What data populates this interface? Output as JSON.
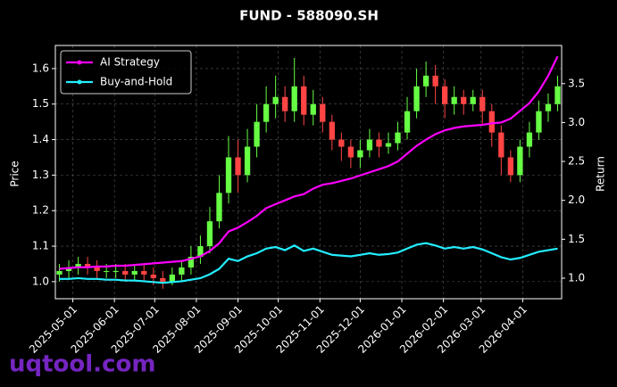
{
  "chart_data": {
    "type": "candlestick",
    "title": "FUND - 588090.SH",
    "ylabel": "Price",
    "y2label": "Return",
    "watermark": "uqtool.com",
    "up_color": "#66ff44",
    "down_color": "#ff4444",
    "grid": true,
    "legend": "upper left",
    "xlim": [
      "2025-04-18",
      "2026-04-30"
    ],
    "xticks": [
      "2025-05-01",
      "2025-06-01",
      "2025-07-01",
      "2025-08-01",
      "2025-09-01",
      "2025-10-01",
      "2025-11-01",
      "2025-12-01",
      "2026-01-01",
      "2026-02-01",
      "2026-03-01",
      "2026-04-01"
    ],
    "ylim": [
      0.952,
      1.665
    ],
    "yticks": [
      {
        "value": 1.0,
        "label": "1.0"
      },
      {
        "value": 1.1,
        "label": "1.1"
      },
      {
        "value": 1.2,
        "label": "1.2"
      },
      {
        "value": 1.3,
        "label": "1.3"
      },
      {
        "value": 1.4,
        "label": "1.4"
      },
      {
        "value": 1.5,
        "label": "1.5"
      },
      {
        "value": 1.6,
        "label": "1.6"
      }
    ],
    "y2lim": [
      0.736,
      3.99
    ],
    "y2ticks": [
      {
        "value": 1.0,
        "label": "1.0"
      },
      {
        "value": 1.5,
        "label": "1.5"
      },
      {
        "value": 2.0,
        "label": "2.0"
      },
      {
        "value": 2.5,
        "label": "2.5"
      },
      {
        "value": 3.0,
        "label": "3.0"
      },
      {
        "value": 3.5,
        "label": "3.5"
      }
    ],
    "x": [
      "2025-04-21",
      "2025-04-28",
      "2025-05-05",
      "2025-05-12",
      "2025-05-19",
      "2025-05-26",
      "2025-06-02",
      "2025-06-09",
      "2025-06-16",
      "2025-06-23",
      "2025-06-30",
      "2025-07-07",
      "2025-07-14",
      "2025-07-21",
      "2025-07-28",
      "2025-08-04",
      "2025-08-11",
      "2025-08-18",
      "2025-08-25",
      "2025-09-01",
      "2025-09-08",
      "2025-09-15",
      "2025-09-22",
      "2025-09-29",
      "2025-10-06",
      "2025-10-13",
      "2025-10-20",
      "2025-10-27",
      "2025-11-03",
      "2025-11-10",
      "2025-11-17",
      "2025-11-24",
      "2025-12-01",
      "2025-12-08",
      "2025-12-15",
      "2025-12-22",
      "2025-12-29",
      "2026-01-05",
      "2026-01-12",
      "2026-01-19",
      "2026-01-26",
      "2026-02-02",
      "2026-02-09",
      "2026-02-16",
      "2026-02-23",
      "2026-03-02",
      "2026-03-09",
      "2026-03-16",
      "2026-03-23",
      "2026-03-30",
      "2026-04-06",
      "2026-04-13",
      "2026-04-20",
      "2026-04-27"
    ],
    "open": [
      1.02,
      1.03,
      1.04,
      1.05,
      1.04,
      1.03,
      1.03,
      1.03,
      1.02,
      1.03,
      1.02,
      1.01,
      1.0,
      1.02,
      1.04,
      1.07,
      1.1,
      1.17,
      1.25,
      1.35,
      1.3,
      1.38,
      1.45,
      1.5,
      1.52,
      1.48,
      1.55,
      1.47,
      1.5,
      1.45,
      1.4,
      1.38,
      1.35,
      1.37,
      1.4,
      1.38,
      1.39,
      1.42,
      1.48,
      1.55,
      1.58,
      1.55,
      1.5,
      1.52,
      1.5,
      1.52,
      1.48,
      1.42,
      1.35,
      1.3,
      1.38,
      1.42,
      1.48,
      1.5
    ],
    "high": [
      1.05,
      1.06,
      1.07,
      1.07,
      1.06,
      1.05,
      1.05,
      1.05,
      1.05,
      1.05,
      1.04,
      1.03,
      1.04,
      1.06,
      1.1,
      1.13,
      1.21,
      1.3,
      1.41,
      1.4,
      1.43,
      1.5,
      1.55,
      1.58,
      1.55,
      1.63,
      1.58,
      1.54,
      1.52,
      1.47,
      1.42,
      1.4,
      1.4,
      1.43,
      1.42,
      1.42,
      1.45,
      1.52,
      1.6,
      1.62,
      1.61,
      1.57,
      1.55,
      1.54,
      1.54,
      1.54,
      1.5,
      1.44,
      1.37,
      1.4,
      1.45,
      1.51,
      1.53,
      1.58
    ],
    "low": [
      1.0,
      1.01,
      1.02,
      1.02,
      1.01,
      1.01,
      1.01,
      1.0,
      1.0,
      1.0,
      0.99,
      0.98,
      0.99,
      1.0,
      1.02,
      1.05,
      1.08,
      1.15,
      1.22,
      1.25,
      1.28,
      1.35,
      1.42,
      1.46,
      1.45,
      1.45,
      1.44,
      1.44,
      1.42,
      1.37,
      1.34,
      1.32,
      1.32,
      1.35,
      1.35,
      1.36,
      1.37,
      1.4,
      1.46,
      1.52,
      1.5,
      1.46,
      1.47,
      1.47,
      1.48,
      1.44,
      1.38,
      1.3,
      1.28,
      1.28,
      1.35,
      1.4,
      1.45,
      1.48
    ],
    "close": [
      1.03,
      1.04,
      1.05,
      1.04,
      1.03,
      1.03,
      1.03,
      1.02,
      1.03,
      1.02,
      1.01,
      1.0,
      1.02,
      1.04,
      1.07,
      1.1,
      1.17,
      1.25,
      1.35,
      1.3,
      1.38,
      1.45,
      1.5,
      1.52,
      1.48,
      1.55,
      1.47,
      1.5,
      1.45,
      1.4,
      1.38,
      1.35,
      1.37,
      1.4,
      1.38,
      1.39,
      1.42,
      1.48,
      1.55,
      1.58,
      1.55,
      1.5,
      1.52,
      1.5,
      1.52,
      1.48,
      1.42,
      1.35,
      1.3,
      1.38,
      1.42,
      1.48,
      1.5,
      1.55
    ],
    "series": [
      {
        "name": "AI Strategy",
        "color": "#ff00ff",
        "axis": "y2",
        "values": [
          1.12,
          1.13,
          1.14,
          1.14,
          1.15,
          1.15,
          1.16,
          1.16,
          1.17,
          1.18,
          1.19,
          1.2,
          1.21,
          1.22,
          1.25,
          1.28,
          1.35,
          1.45,
          1.6,
          1.65,
          1.72,
          1.8,
          1.9,
          1.95,
          2.0,
          2.05,
          2.08,
          2.15,
          2.2,
          2.22,
          2.25,
          2.28,
          2.32,
          2.36,
          2.4,
          2.44,
          2.5,
          2.6,
          2.7,
          2.78,
          2.85,
          2.9,
          2.93,
          2.95,
          2.96,
          2.97,
          2.99,
          3.0,
          3.05,
          3.15,
          3.25,
          3.4,
          3.6,
          3.85
        ]
      },
      {
        "name": "Buy-and-Hold",
        "color": "#22eeff",
        "axis": "y2",
        "values": [
          0.99,
          0.99,
          1.0,
          0.99,
          0.99,
          0.98,
          0.98,
          0.97,
          0.97,
          0.96,
          0.95,
          0.94,
          0.95,
          0.96,
          0.98,
          1.0,
          1.05,
          1.12,
          1.25,
          1.22,
          1.28,
          1.32,
          1.38,
          1.4,
          1.36,
          1.42,
          1.35,
          1.38,
          1.34,
          1.3,
          1.29,
          1.28,
          1.3,
          1.32,
          1.3,
          1.31,
          1.33,
          1.38,
          1.43,
          1.45,
          1.42,
          1.38,
          1.4,
          1.38,
          1.4,
          1.37,
          1.32,
          1.27,
          1.24,
          1.26,
          1.3,
          1.34,
          1.36,
          1.38
        ]
      }
    ]
  }
}
